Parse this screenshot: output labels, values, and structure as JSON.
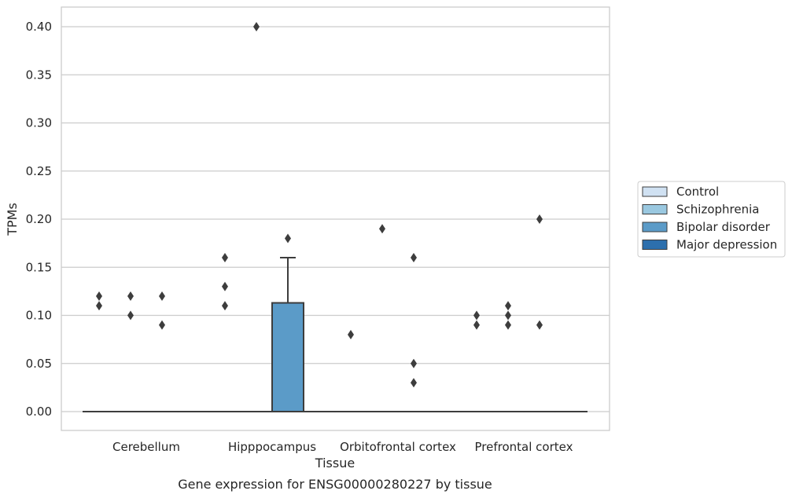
{
  "chart_data": {
    "type": "box",
    "title": "",
    "caption": "Gene expression for ENSG00000280227 by tissue",
    "xlabel": "Tissue",
    "ylabel": "TPMs",
    "ylim": [
      -0.02,
      0.42
    ],
    "yticks": [
      0.0,
      0.05,
      0.1,
      0.15,
      0.2,
      0.25,
      0.3,
      0.35,
      0.4
    ],
    "ytick_labels": [
      "0.00",
      "0.05",
      "0.10",
      "0.15",
      "0.20",
      "0.25",
      "0.30",
      "0.35",
      "0.40"
    ],
    "grid": "horizontal",
    "legend_position": "right",
    "categories": [
      "Cerebellum",
      "Hipppocampus",
      "Orbitofrontal cortex",
      "Prefrontal cortex"
    ],
    "series": [
      {
        "name": "Control",
        "color": "#d0e1f2",
        "boxes": [
          {
            "q1": 0,
            "median": 0,
            "q3": 0,
            "whisker_low": 0,
            "whisker_high": 0,
            "outliers": [
              0.11,
              0.12
            ]
          },
          {
            "q1": 0,
            "median": 0,
            "q3": 0,
            "whisker_low": 0,
            "whisker_high": 0,
            "outliers": [
              0.11,
              0.13,
              0.16
            ]
          },
          {
            "q1": 0,
            "median": 0,
            "q3": 0,
            "whisker_low": 0,
            "whisker_high": 0,
            "outliers": [
              0.08
            ]
          },
          {
            "q1": 0,
            "median": 0,
            "q3": 0,
            "whisker_low": 0,
            "whisker_high": 0,
            "outliers": [
              0.09,
              0.1
            ]
          }
        ]
      },
      {
        "name": "Schizophrenia",
        "color": "#9ac8e0",
        "boxes": [
          {
            "q1": 0,
            "median": 0,
            "q3": 0,
            "whisker_low": 0,
            "whisker_high": 0,
            "outliers": [
              0.1,
              0.12
            ]
          },
          {
            "q1": 0,
            "median": 0,
            "q3": 0,
            "whisker_low": 0,
            "whisker_high": 0,
            "outliers": [
              0.4
            ]
          },
          {
            "q1": 0,
            "median": 0,
            "q3": 0,
            "whisker_low": 0,
            "whisker_high": 0,
            "outliers": [
              0.19
            ]
          },
          {
            "q1": 0,
            "median": 0,
            "q3": 0,
            "whisker_low": 0,
            "whisker_high": 0,
            "outliers": [
              0.09,
              0.1,
              0.11
            ]
          }
        ]
      },
      {
        "name": "Bipolar disorder",
        "color": "#5b9bc8",
        "boxes": [
          {
            "q1": 0,
            "median": 0,
            "q3": 0,
            "whisker_low": 0,
            "whisker_high": 0,
            "outliers": [
              0.09,
              0.12
            ]
          },
          {
            "q1": 0,
            "median": 0,
            "q3": 0.113,
            "whisker_low": 0,
            "whisker_high": 0.16,
            "outliers": [
              0.18
            ]
          },
          {
            "q1": 0,
            "median": 0,
            "q3": 0,
            "whisker_low": 0,
            "whisker_high": 0,
            "outliers": [
              0.03,
              0.05,
              0.16
            ]
          },
          {
            "q1": 0,
            "median": 0,
            "q3": 0,
            "whisker_low": 0,
            "whisker_high": 0,
            "outliers": [
              0.09,
              0.2
            ]
          }
        ]
      },
      {
        "name": "Major depression",
        "color": "#2c6fad",
        "boxes": [
          {
            "q1": 0,
            "median": 0,
            "q3": 0,
            "whisker_low": 0,
            "whisker_high": 0,
            "outliers": []
          },
          {
            "q1": 0,
            "median": 0,
            "q3": 0,
            "whisker_low": 0,
            "whisker_high": 0,
            "outliers": []
          },
          {
            "q1": 0,
            "median": 0,
            "q3": 0,
            "whisker_low": 0,
            "whisker_high": 0,
            "outliers": []
          },
          {
            "q1": 0,
            "median": 0,
            "q3": 0,
            "whisker_low": 0,
            "whisker_high": 0,
            "outliers": []
          }
        ]
      }
    ],
    "colors": {
      "grid": "#cccccc",
      "frame": "#cccccc",
      "box_edge": "#3d3d3d",
      "outlier": "#3d3d3d"
    }
  }
}
